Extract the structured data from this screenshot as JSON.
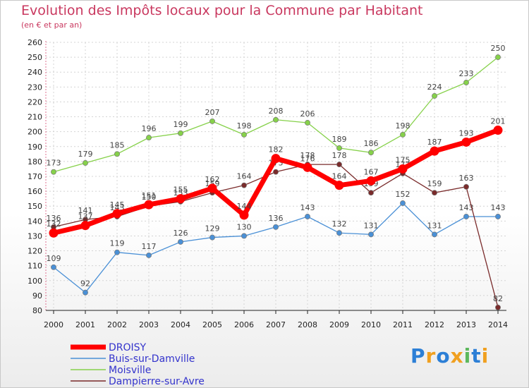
{
  "chart_data": {
    "type": "line",
    "title": "Evolution des Impôts locaux pour la Commune par Habitant",
    "subtitle": "(en € et par an)",
    "x": [
      "2000",
      "2001",
      "2002",
      "2003",
      "2004",
      "2005",
      "2006",
      "2007",
      "2008",
      "2009",
      "2010",
      "2011",
      "2012",
      "2013",
      "2014"
    ],
    "ylim": [
      80,
      260
    ],
    "yticks": [
      "80",
      "90",
      "100",
      "110",
      "120",
      "130",
      "140",
      "150",
      "160",
      "170",
      "180",
      "190",
      "200",
      "210",
      "220",
      "230",
      "240",
      "250",
      "260"
    ],
    "series": [
      {
        "name": "Buis-sur-Damville",
        "color": "#4a90d6",
        "values": [
          109,
          92,
          119,
          117,
          126,
          129,
          130,
          136,
          143,
          132,
          131,
          152,
          131,
          143,
          143
        ],
        "labels": [
          "109",
          "92",
          "119",
          "117",
          "126",
          "129",
          "130",
          "136",
          "143",
          "132",
          "131",
          "152",
          "131",
          "143",
          "143"
        ]
      },
      {
        "name": "Moisville",
        "color": "#86d14a",
        "values": [
          173,
          179,
          185,
          196,
          199,
          207,
          198,
          208,
          206,
          189,
          186,
          198,
          224,
          233,
          250
        ],
        "labels": [
          "173",
          "179",
          "185",
          "196",
          "199",
          "207",
          "198",
          "208",
          "206",
          "189",
          "186",
          "198",
          "224",
          "233",
          "250"
        ]
      },
      {
        "name": "Dampierre-sur-Avre",
        "color": "#7a2b2b",
        "values": [
          136,
          141,
          143,
          150,
          153,
          159,
          164,
          173,
          178,
          178,
          159,
          172,
          159,
          163,
          82
        ],
        "labels": [
          "136",
          "141",
          "143",
          "150",
          "153",
          "159",
          "164",
          "173",
          "178",
          "178",
          "159",
          "172",
          "159",
          "163",
          "82"
        ]
      },
      {
        "name": "DROISY",
        "color": "#ff0000",
        "values": [
          132,
          137,
          145,
          151,
          155,
          162,
          144,
          182,
          176,
          164,
          167,
          175,
          187,
          193,
          201
        ],
        "labels": [
          "132",
          "137",
          "145",
          "151",
          "155",
          "162",
          "144",
          "182",
          "176",
          "164",
          "167",
          "175",
          "187",
          "193",
          "201"
        ]
      }
    ],
    "legend": [
      "DROISY",
      "Buis-sur-Damville",
      "Moisville",
      "Dampierre-sur-Avre"
    ],
    "legend_color": "#3333cc"
  },
  "branding": {
    "letters": [
      "P",
      "r",
      "o",
      "x",
      "i",
      "t",
      "i"
    ],
    "colors": [
      "#2c7fd6",
      "#f0a020",
      "#2c7fd6",
      "#f0a020",
      "#5cb85c",
      "#2c7fd6",
      "#f0a020"
    ]
  }
}
